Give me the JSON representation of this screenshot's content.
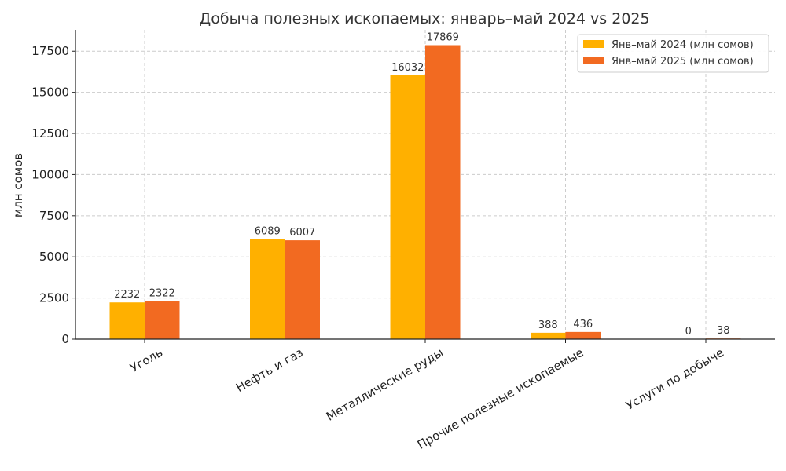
{
  "chart_data": {
    "type": "bar",
    "title": "Добыча полезных ископаемых: январь–май 2024 vs 2025",
    "xlabel": "",
    "ylabel": "млн сомов",
    "categories": [
      "Уголь",
      "Нефть и газ",
      "Металлические руды",
      "Прочие полезные ископаемые",
      "Услуги по добыче"
    ],
    "series": [
      {
        "name": "Янв–май 2024 (млн сомов)",
        "color": "#FFB000",
        "values": [
          2232,
          6089,
          16032,
          388,
          0
        ]
      },
      {
        "name": "Янв–май 2025 (млн сомов)",
        "color": "#F26A21",
        "values": [
          2322,
          6007,
          17869,
          436,
          38
        ]
      }
    ],
    "ylim": [
      0,
      18800
    ],
    "yticks": [
      0,
      2500,
      5000,
      7500,
      10000,
      12500,
      15000,
      17500
    ],
    "ytick_labels": [
      "0",
      "2500",
      "5000",
      "7500",
      "10000",
      "12500",
      "15000",
      "17500"
    ],
    "grid": true,
    "legend_position": "top-right"
  }
}
